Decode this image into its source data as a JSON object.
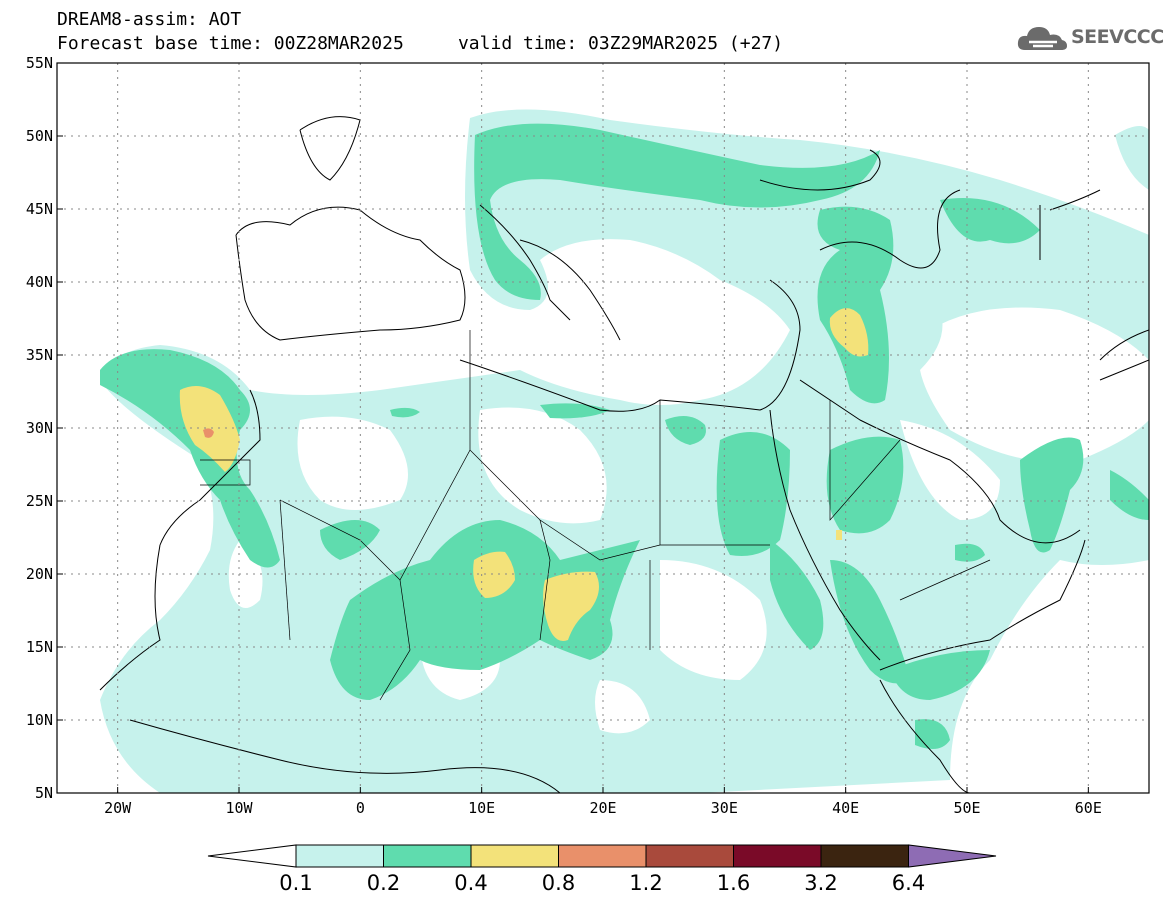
{
  "header": {
    "line1": "DREAM8-assim: AOT",
    "line2": "Forecast base time: 00Z28MAR2025     valid time: 03Z29MAR2025 (+27)"
  },
  "logo": {
    "text": "SEEVCCC",
    "icon": "cloud-logo-icon"
  },
  "map": {
    "lon_range": [
      -25,
      65
    ],
    "lat_range": [
      5,
      55
    ],
    "lat_labels": [
      "55N",
      "50N",
      "45N",
      "40N",
      "35N",
      "30N",
      "25N",
      "20N",
      "15N",
      "10N",
      "5N"
    ],
    "lon_labels": [
      "20W",
      "10W",
      "0",
      "10E",
      "20E",
      "30E",
      "40E",
      "50E",
      "60E"
    ],
    "gridlines": "dotted"
  },
  "colorbar": {
    "levels": [
      "0.1",
      "0.2",
      "0.4",
      "0.8",
      "1.2",
      "1.6",
      "3.2",
      "6.4"
    ],
    "colors": [
      "#c6f2ec",
      "#5fdcae",
      "#f3e27a",
      "#e9906a",
      "#a94a3c",
      "#7a0a28",
      "#3b2410",
      "#8e6cb4"
    ]
  }
}
